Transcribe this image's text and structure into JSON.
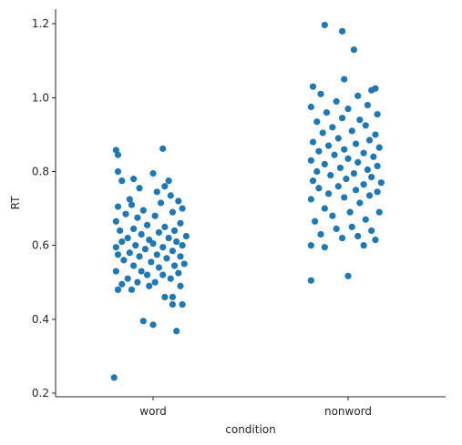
{
  "chart_data": {
    "type": "scatter",
    "subtype": "strip",
    "title": "",
    "xlabel": "condition",
    "ylabel": "RT",
    "categories": [
      "word",
      "nonword"
    ],
    "ylim": [
      0.19,
      1.24
    ],
    "yticks": [
      0.2,
      0.4,
      0.6,
      0.8,
      1.0,
      1.2
    ],
    "ytick_labels": [
      "0.2",
      "0.4",
      "0.6",
      "0.8",
      "1.0",
      "1.2"
    ],
    "grid": false,
    "legend": "none",
    "color": "#1f77b4",
    "series": [
      {
        "category": "word",
        "points": [
          {
            "x": -0.2,
            "y": 0.242
          },
          {
            "x": 0.12,
            "y": 0.368
          },
          {
            "x": -0.05,
            "y": 0.395
          },
          {
            "x": 0.0,
            "y": 0.385
          },
          {
            "x": 0.15,
            "y": 0.44
          },
          {
            "x": 0.1,
            "y": 0.44
          },
          {
            "x": -0.18,
            "y": 0.48
          },
          {
            "x": -0.11,
            "y": 0.48
          },
          {
            "x": -0.02,
            "y": 0.49
          },
          {
            "x": 0.06,
            "y": 0.46
          },
          {
            "x": 0.1,
            "y": 0.46
          },
          {
            "x": 0.14,
            "y": 0.49
          },
          {
            "x": -0.16,
            "y": 0.495
          },
          {
            "x": -0.08,
            "y": 0.5
          },
          {
            "x": 0.01,
            "y": 0.5
          },
          {
            "x": 0.09,
            "y": 0.51
          },
          {
            "x": -0.13,
            "y": 0.51
          },
          {
            "x": -0.03,
            "y": 0.52
          },
          {
            "x": 0.05,
            "y": 0.52
          },
          {
            "x": 0.13,
            "y": 0.525
          },
          {
            "x": -0.19,
            "y": 0.53
          },
          {
            "x": -0.06,
            "y": 0.53
          },
          {
            "x": 0.03,
            "y": 0.54
          },
          {
            "x": -0.1,
            "y": 0.545
          },
          {
            "x": 0.11,
            "y": 0.545
          },
          {
            "x": 0.16,
            "y": 0.55
          },
          {
            "x": -0.01,
            "y": 0.555
          },
          {
            "x": -0.15,
            "y": 0.56
          },
          {
            "x": 0.07,
            "y": 0.565
          },
          {
            "x": -0.07,
            "y": 0.57
          },
          {
            "x": 0.14,
            "y": 0.57
          },
          {
            "x": -0.18,
            "y": 0.575
          },
          {
            "x": 0.02,
            "y": 0.575
          },
          {
            "x": -0.12,
            "y": 0.58
          },
          {
            "x": 0.1,
            "y": 0.585
          },
          {
            "x": -0.04,
            "y": 0.59
          },
          {
            "x": -0.19,
            "y": 0.595
          },
          {
            "x": 0.05,
            "y": 0.595
          },
          {
            "x": 0.15,
            "y": 0.6
          },
          {
            "x": -0.09,
            "y": 0.6
          },
          {
            "x": 0.0,
            "y": 0.605
          },
          {
            "x": -0.16,
            "y": 0.61
          },
          {
            "x": 0.12,
            "y": 0.61
          },
          {
            "x": -0.02,
            "y": 0.615
          },
          {
            "x": 0.08,
            "y": 0.62
          },
          {
            "x": -0.13,
            "y": 0.62
          },
          {
            "x": 0.17,
            "y": 0.625
          },
          {
            "x": -0.06,
            "y": 0.63
          },
          {
            "x": 0.03,
            "y": 0.635
          },
          {
            "x": -0.17,
            "y": 0.64
          },
          {
            "x": 0.11,
            "y": 0.64
          },
          {
            "x": -0.1,
            "y": 0.645
          },
          {
            "x": 0.06,
            "y": 0.65
          },
          {
            "x": -0.03,
            "y": 0.655
          },
          {
            "x": 0.14,
            "y": 0.66
          },
          {
            "x": -0.19,
            "y": 0.665
          },
          {
            "x": -0.08,
            "y": 0.675
          },
          {
            "x": 0.01,
            "y": 0.68
          },
          {
            "x": -0.14,
            "y": 0.685
          },
          {
            "x": 0.1,
            "y": 0.69
          },
          {
            "x": -0.05,
            "y": 0.695
          },
          {
            "x": 0.15,
            "y": 0.7
          },
          {
            "x": -0.18,
            "y": 0.705
          },
          {
            "x": -0.11,
            "y": 0.71
          },
          {
            "x": 0.04,
            "y": 0.715
          },
          {
            "x": 0.13,
            "y": 0.72
          },
          {
            "x": -0.12,
            "y": 0.725
          },
          {
            "x": 0.09,
            "y": 0.735
          },
          {
            "x": 0.02,
            "y": 0.745
          },
          {
            "x": -0.07,
            "y": 0.755
          },
          {
            "x": 0.06,
            "y": 0.76
          },
          {
            "x": -0.16,
            "y": 0.775
          },
          {
            "x": 0.08,
            "y": 0.775
          },
          {
            "x": -0.1,
            "y": 0.78
          },
          {
            "x": -0.18,
            "y": 0.8
          },
          {
            "x": 0.0,
            "y": 0.795
          },
          {
            "x": -0.18,
            "y": 0.845
          },
          {
            "x": -0.19,
            "y": 0.858
          },
          {
            "x": 0.05,
            "y": 0.862
          }
        ]
      },
      {
        "category": "nonword",
        "points": [
          {
            "x": -0.19,
            "y": 0.505
          },
          {
            "x": 0.0,
            "y": 0.517
          },
          {
            "x": -0.12,
            "y": 0.595
          },
          {
            "x": -0.19,
            "y": 0.6
          },
          {
            "x": 0.08,
            "y": 0.6
          },
          {
            "x": 0.14,
            "y": 0.615
          },
          {
            "x": -0.03,
            "y": 0.62
          },
          {
            "x": 0.05,
            "y": 0.625
          },
          {
            "x": -0.14,
            "y": 0.63
          },
          {
            "x": 0.12,
            "y": 0.64
          },
          {
            "x": -0.06,
            "y": 0.645
          },
          {
            "x": 0.02,
            "y": 0.65
          },
          {
            "x": -0.17,
            "y": 0.665
          },
          {
            "x": 0.09,
            "y": 0.67
          },
          {
            "x": -0.08,
            "y": 0.68
          },
          {
            "x": 0.16,
            "y": 0.69
          },
          {
            "x": 0.01,
            "y": 0.69
          },
          {
            "x": -0.12,
            "y": 0.7
          },
          {
            "x": 0.06,
            "y": 0.715
          },
          {
            "x": -0.19,
            "y": 0.725
          },
          {
            "x": -0.02,
            "y": 0.73
          },
          {
            "x": 0.11,
            "y": 0.735
          },
          {
            "x": -0.1,
            "y": 0.74
          },
          {
            "x": 0.15,
            "y": 0.745
          },
          {
            "x": 0.04,
            "y": 0.75
          },
          {
            "x": -0.15,
            "y": 0.755
          },
          {
            "x": -0.05,
            "y": 0.76
          },
          {
            "x": 0.08,
            "y": 0.765
          },
          {
            "x": 0.17,
            "y": 0.77
          },
          {
            "x": -0.18,
            "y": 0.775
          },
          {
            "x": -0.01,
            "y": 0.78
          },
          {
            "x": 0.12,
            "y": 0.785
          },
          {
            "x": -0.09,
            "y": 0.79
          },
          {
            "x": 0.03,
            "y": 0.795
          },
          {
            "x": -0.16,
            "y": 0.8
          },
          {
            "x": 0.1,
            "y": 0.805
          },
          {
            "x": -0.04,
            "y": 0.81
          },
          {
            "x": 0.15,
            "y": 0.815
          },
          {
            "x": -0.12,
            "y": 0.82
          },
          {
            "x": 0.05,
            "y": 0.825
          },
          {
            "x": -0.19,
            "y": 0.83
          },
          {
            "x": 0.0,
            "y": 0.835
          },
          {
            "x": 0.13,
            "y": 0.84
          },
          {
            "x": -0.07,
            "y": 0.845
          },
          {
            "x": 0.08,
            "y": 0.85
          },
          {
            "x": -0.15,
            "y": 0.855
          },
          {
            "x": -0.02,
            "y": 0.86
          },
          {
            "x": 0.16,
            "y": 0.865
          },
          {
            "x": -0.1,
            "y": 0.87
          },
          {
            "x": 0.04,
            "y": 0.875
          },
          {
            "x": -0.18,
            "y": 0.88
          },
          {
            "x": 0.11,
            "y": 0.885
          },
          {
            "x": -0.05,
            "y": 0.89
          },
          {
            "x": 0.14,
            "y": 0.9
          },
          {
            "x": -0.13,
            "y": 0.905
          },
          {
            "x": 0.02,
            "y": 0.91
          },
          {
            "x": -0.08,
            "y": 0.92
          },
          {
            "x": 0.09,
            "y": 0.925
          },
          {
            "x": -0.16,
            "y": 0.935
          },
          {
            "x": 0.06,
            "y": 0.94
          },
          {
            "x": -0.03,
            "y": 0.945
          },
          {
            "x": 0.15,
            "y": 0.955
          },
          {
            "x": -0.11,
            "y": 0.96
          },
          {
            "x": 0.0,
            "y": 0.97
          },
          {
            "x": -0.19,
            "y": 0.975
          },
          {
            "x": 0.1,
            "y": 0.98
          },
          {
            "x": -0.06,
            "y": 0.99
          },
          {
            "x": 0.05,
            "y": 1.005
          },
          {
            "x": -0.14,
            "y": 1.01
          },
          {
            "x": 0.12,
            "y": 1.02
          },
          {
            "x": -0.18,
            "y": 1.03
          },
          {
            "x": 0.14,
            "y": 1.025
          },
          {
            "x": -0.02,
            "y": 1.05
          },
          {
            "x": 0.03,
            "y": 1.13
          },
          {
            "x": -0.03,
            "y": 1.18
          },
          {
            "x": -0.12,
            "y": 1.197
          }
        ]
      }
    ]
  }
}
